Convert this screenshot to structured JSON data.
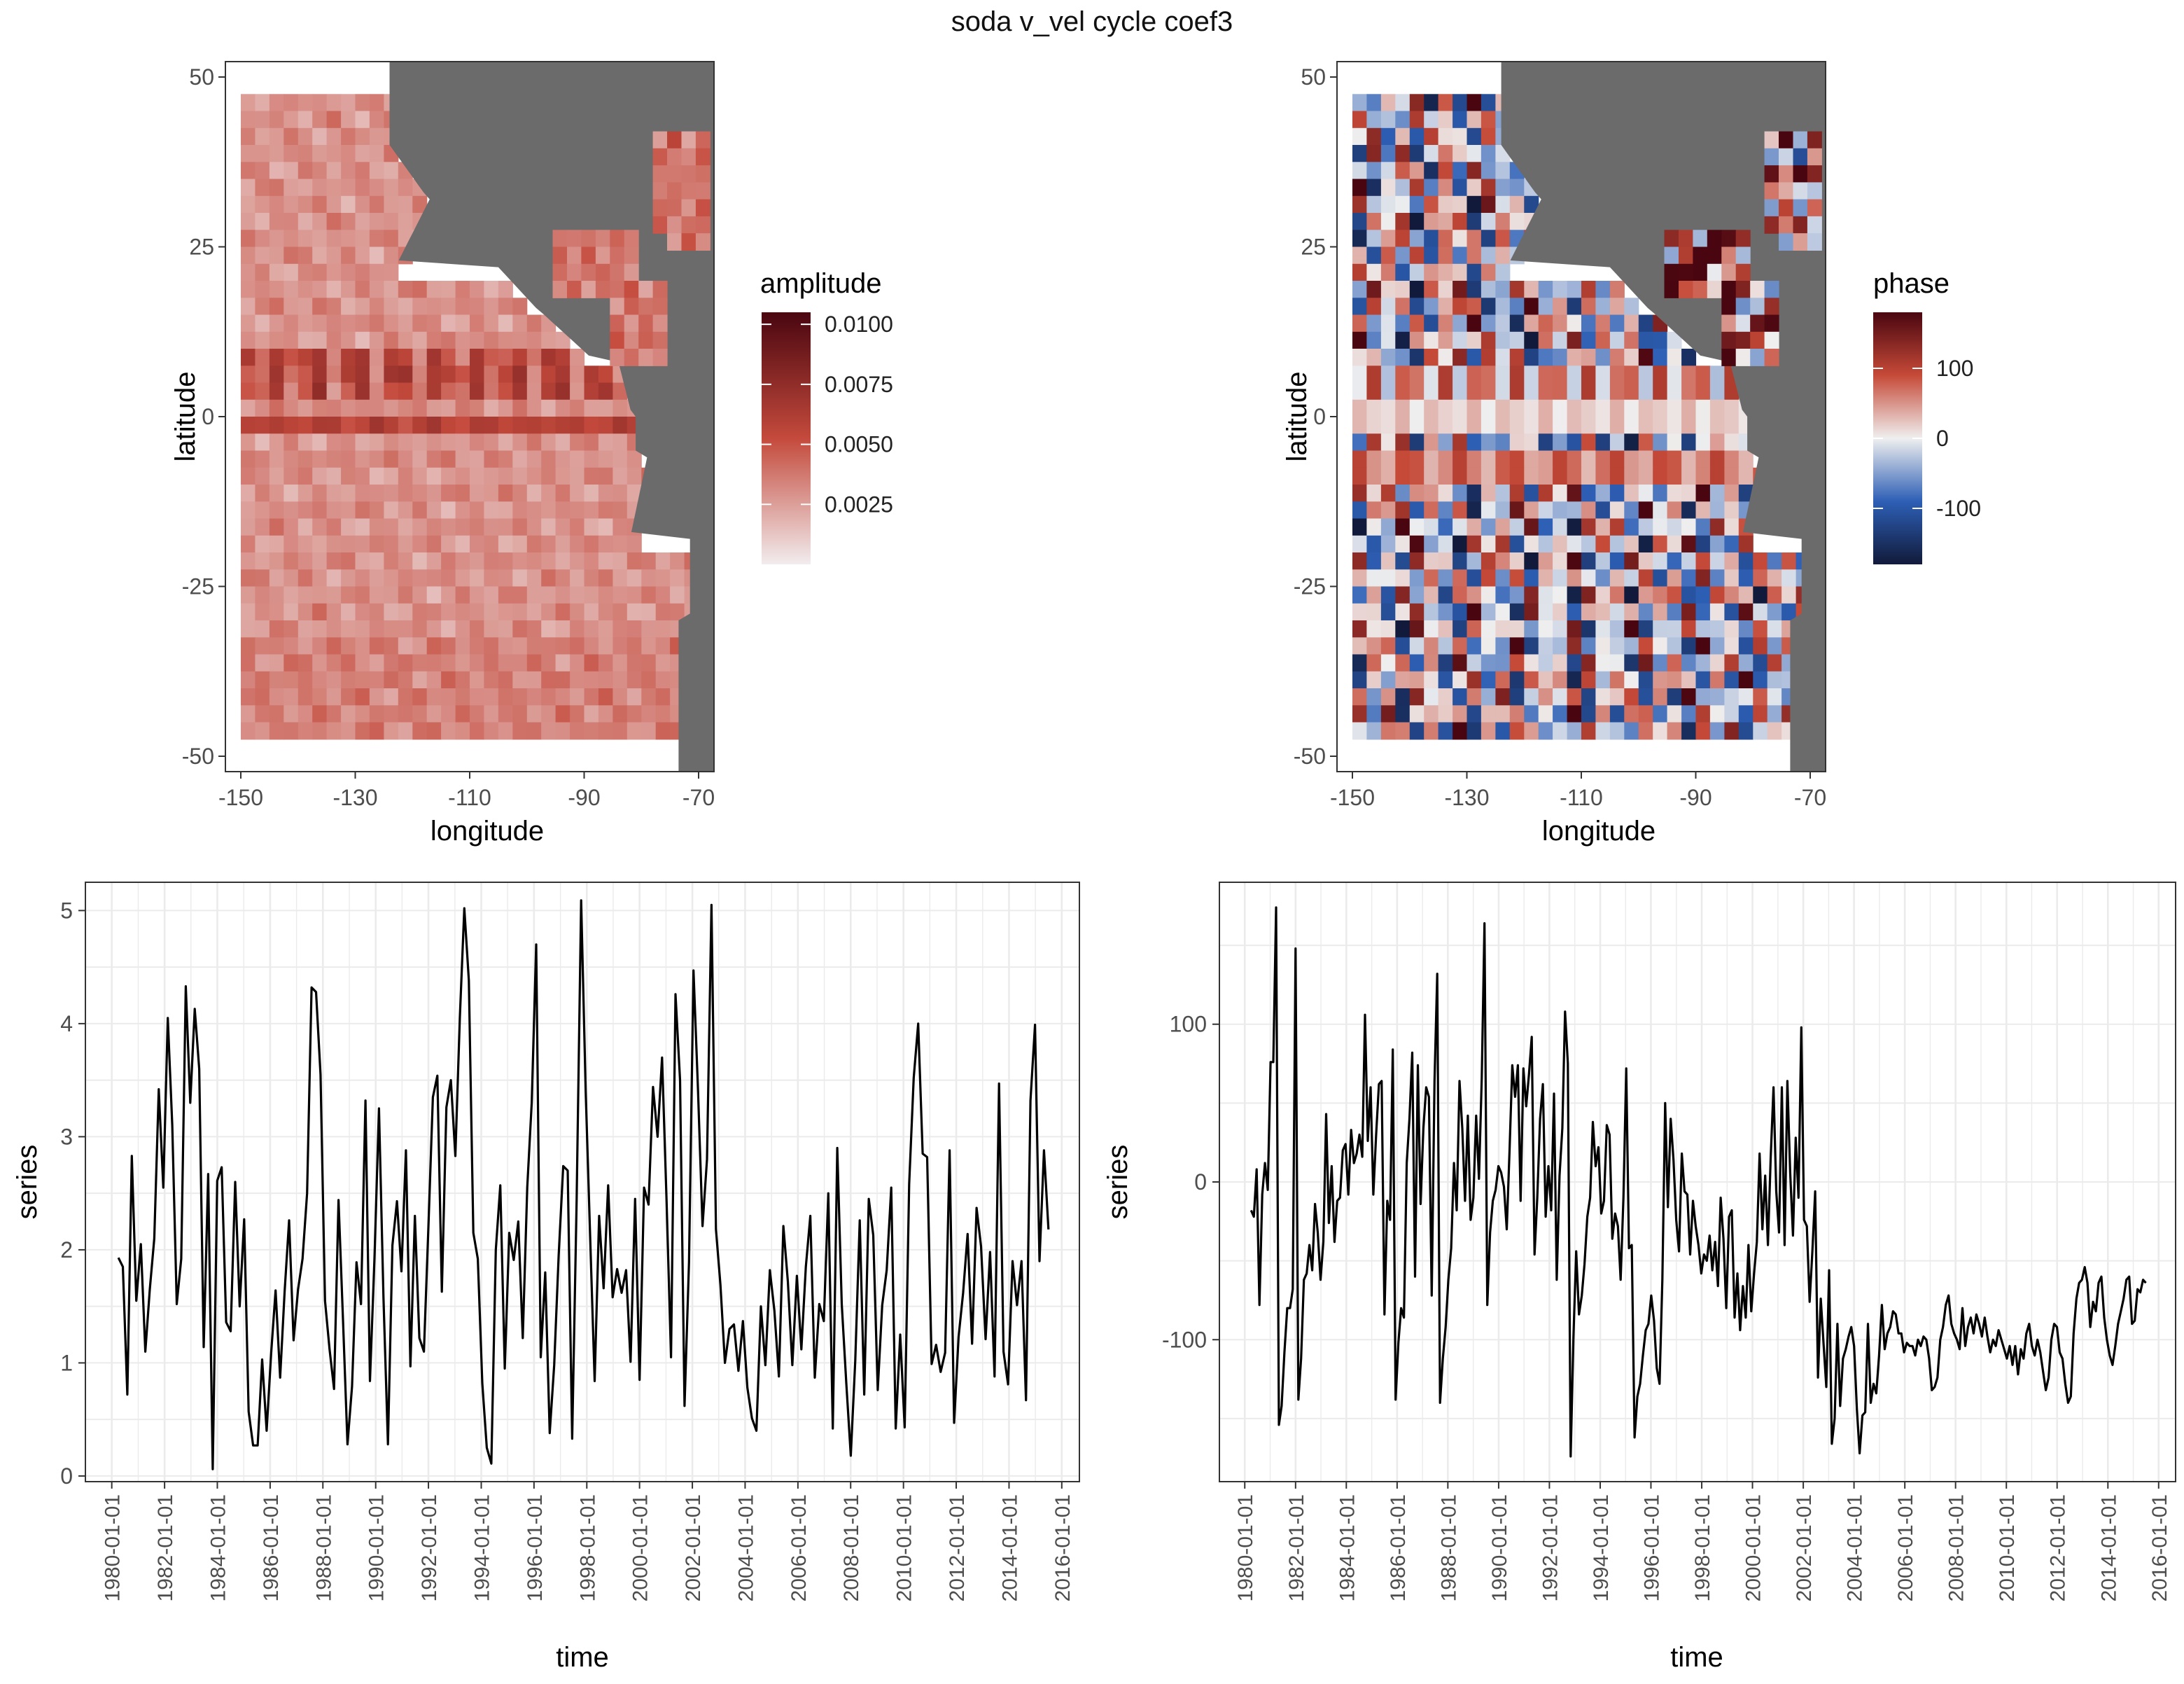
{
  "figure": {
    "title": "soda v_vel cycle coef3"
  },
  "colors": {
    "land": "#6b6b6b",
    "axis_text": "#4d4d4d",
    "grid": "#ebebeb",
    "amplitude_low": "#f2ecee",
    "amplitude_mid": "#c44a3c",
    "amplitude_high": "#4a0610",
    "phase_low": "#111a3a",
    "phase_mid": "#efefef",
    "phase_high": "#4a0610",
    "line": "#000000"
  },
  "chart_data": [
    {
      "type": "heatmap",
      "title": "",
      "xlabel": "longitude",
      "ylabel": "latitude",
      "xlim": [
        -150,
        -70
      ],
      "ylim": [
        -50,
        50
      ],
      "xticks": [
        -150,
        -130,
        -110,
        -90,
        -70
      ],
      "yticks": [
        -50,
        -25,
        0,
        25,
        50
      ],
      "legend": {
        "title": "amplitude",
        "placement": "right",
        "range": [
          0,
          0.0105
        ],
        "ticks": [
          "0.0025",
          "0.0050",
          "0.0075",
          "0.0100"
        ]
      }
    },
    {
      "type": "heatmap",
      "title": "",
      "xlabel": "longitude",
      "ylabel": "latitude",
      "xlim": [
        -150,
        -70
      ],
      "ylim": [
        -50,
        50
      ],
      "xticks": [
        -150,
        -130,
        -110,
        -90,
        -70
      ],
      "yticks": [
        -50,
        -25,
        0,
        25,
        50
      ],
      "legend": {
        "title": "phase",
        "placement": "right",
        "range": [
          -180,
          180
        ],
        "ticks": [
          "-100",
          "0",
          "100"
        ]
      }
    },
    {
      "type": "line",
      "xlabel": "time",
      "ylabel": "series",
      "ylim": [
        -0.05,
        5.25
      ],
      "yticks": [
        "0",
        "1",
        "2",
        "3",
        "4",
        "5"
      ],
      "xticks": [
        "1980-01-01",
        "1982-01-01",
        "1984-01-01",
        "1986-01-01",
        "1988-01-01",
        "1990-01-01",
        "1992-01-01",
        "1994-01-01",
        "1996-01-01",
        "1998-01-01",
        "2000-01-01",
        "2002-01-01",
        "2004-01-01",
        "2006-01-01",
        "2008-01-01",
        "2010-01-01",
        "2012-01-01",
        "2014-01-01",
        "2016-01-01"
      ],
      "x_start": "1980-04-01",
      "x_end": "2015-07-01",
      "values": [
        1.93,
        1.85,
        0.72,
        2.83,
        1.55,
        2.05,
        1.1,
        1.65,
        2.1,
        3.42,
        2.55,
        4.05,
        3.1,
        1.52,
        1.92,
        4.33,
        3.3,
        4.13,
        3.6,
        1.14,
        2.67,
        0.06,
        2.61,
        2.73,
        1.36,
        1.28,
        2.6,
        1.5,
        2.27,
        0.57,
        0.27,
        0.27,
        1.03,
        0.4,
        1.08,
        1.64,
        0.87,
        1.63,
        2.26,
        1.2,
        1.65,
        1.92,
        2.5,
        4.32,
        4.28,
        3.55,
        1.55,
        1.12,
        0.77,
        2.44,
        1.38,
        0.28,
        0.79,
        1.89,
        1.52,
        3.32,
        0.84,
        1.93,
        3.25,
        1.58,
        0.28,
        2.04,
        2.43,
        1.81,
        2.88,
        0.97,
        2.3,
        1.22,
        1.1,
        2.2,
        3.35,
        3.54,
        1.63,
        3.26,
        3.5,
        2.83,
        4.05,
        5.02,
        4.38,
        2.15,
        1.92,
        0.82,
        0.25,
        0.11,
        2.0,
        2.57,
        0.95,
        2.15,
        1.91,
        2.25,
        1.22,
        2.55,
        3.3,
        4.7,
        1.05,
        1.8,
        0.38,
        0.98,
        1.95,
        2.74,
        2.7,
        0.33,
        2.45,
        5.09,
        3.4,
        2.11,
        0.84,
        2.3,
        1.66,
        2.57,
        1.58,
        1.83,
        1.62,
        1.82,
        1.01,
        2.45,
        0.85,
        2.55,
        2.4,
        3.44,
        3.0,
        3.7,
        2.44,
        1.05,
        4.26,
        3.5,
        0.62,
        1.89,
        4.47,
        3.42,
        2.21,
        2.8,
        5.05,
        2.18,
        1.69,
        1.0,
        1.3,
        1.34,
        0.93,
        1.37,
        0.78,
        0.51,
        0.4,
        1.5,
        0.98,
        1.82,
        1.46,
        0.88,
        2.21,
        1.72,
        0.98,
        1.77,
        1.12,
        1.85,
        2.3,
        0.87,
        1.52,
        1.37,
        2.5,
        0.42,
        2.9,
        1.52,
        0.82,
        0.18,
        1.02,
        2.26,
        0.72,
        2.45,
        2.13,
        0.76,
        1.51,
        1.82,
        2.55,
        0.42,
        1.25,
        0.43,
        2.58,
        3.52,
        4.0,
        2.85,
        2.82,
        0.99,
        1.16,
        0.92,
        1.09,
        2.88,
        0.47,
        1.23,
        1.62,
        2.14,
        1.17,
        2.37,
        2.03,
        1.21,
        1.98,
        0.88,
        3.47,
        1.1,
        0.81,
        1.9,
        1.51,
        1.9,
        0.67,
        3.32,
        3.99,
        1.9,
        2.88,
        2.18
      ]
    },
    {
      "type": "line",
      "xlabel": "time",
      "ylabel": "series",
      "ylim": [
        -190,
        190
      ],
      "yticks": [
        "-100",
        "0",
        "100"
      ],
      "xticks": [
        "1980-01-01",
        "1982-01-01",
        "1984-01-01",
        "1986-01-01",
        "1988-01-01",
        "1990-01-01",
        "1992-01-01",
        "1994-01-01",
        "1996-01-01",
        "1998-01-01",
        "2000-01-01",
        "2002-01-01",
        "2004-01-01",
        "2006-01-01",
        "2008-01-01",
        "2010-01-01",
        "2012-01-01",
        "2014-01-01",
        "2016-01-01"
      ],
      "x_start": "1980-04-01",
      "x_end": "2015-07-01",
      "values": [
        -18,
        -22,
        8,
        -78,
        -8,
        12,
        -5,
        76,
        76,
        174,
        -154,
        -142,
        -108,
        -80,
        -80,
        -68,
        148,
        -138,
        -112,
        -62,
        -58,
        -40,
        -56,
        -14,
        -32,
        -62,
        -38,
        43,
        -26,
        10,
        -38,
        -12,
        -10,
        20,
        24,
        -8,
        33,
        12,
        18,
        30,
        16,
        106,
        26,
        60,
        -8,
        30,
        62,
        64,
        -84,
        -12,
        -24,
        84,
        -138,
        -102,
        -80,
        -86,
        12,
        40,
        82,
        -60,
        74,
        -14,
        34,
        60,
        54,
        -72,
        64,
        132,
        -140,
        -112,
        -92,
        -62,
        -42,
        12,
        -18,
        64,
        34,
        -12,
        42,
        -24,
        -10,
        42,
        2,
        66,
        164,
        -78,
        -32,
        -12,
        -5,
        10,
        6,
        -3,
        -30,
        20,
        74,
        54,
        74,
        -12,
        72,
        48,
        68,
        92,
        -46,
        -10,
        40,
        62,
        -22,
        10,
        -18,
        56,
        -62,
        4,
        34,
        108,
        75,
        -174,
        -98,
        -44,
        -84,
        -72,
        -52,
        -22,
        -10,
        38,
        10,
        22,
        -20,
        -12,
        36,
        30,
        -36,
        -20,
        -28,
        -62,
        -10,
        72,
        -42,
        -40,
        -162,
        -136,
        -128,
        -110,
        -94,
        -90,
        -72,
        -88,
        -118,
        -128,
        -62,
        50,
        -16,
        40,
        14,
        -24,
        -44,
        18,
        -6,
        -8,
        -46,
        -12,
        -28,
        -40,
        -58,
        -46,
        -50,
        -34,
        -56,
        -38,
        -66,
        -10,
        -36,
        -80,
        -22,
        -18,
        -86,
        -58,
        -94,
        -66,
        -86,
        -40,
        -82,
        -58,
        -38,
        18,
        -30,
        4,
        -40,
        16,
        60,
        -6,
        -32,
        60,
        -40,
        64,
        6,
        -34,
        28,
        -10,
        98,
        -24,
        -28,
        -76,
        -44,
        -6,
        -124,
        -74,
        -102,
        -130,
        -56,
        -166,
        -150,
        -90,
        -142,
        -112,
        -106,
        -98,
        -92,
        -104,
        -144,
        -172,
        -148,
        -146,
        -90,
        -140,
        -128,
        -134,
        -110,
        -78,
        -106,
        -96,
        -92,
        -82,
        -84,
        -96,
        -96,
        -108,
        -102,
        -104,
        -104,
        -110,
        -100,
        -104,
        -98,
        -100,
        -112,
        -132,
        -130,
        -124,
        -100,
        -92,
        -78,
        -72,
        -90,
        -96,
        -100,
        -106,
        -80,
        -104,
        -92,
        -86,
        -96,
        -84,
        -90,
        -98,
        -86,
        -98,
        -108,
        -100,
        -104,
        -94,
        -100,
        -106,
        -112,
        -104,
        -116,
        -104,
        -122,
        -106,
        -112,
        -96,
        -90,
        -104,
        -110,
        -100,
        -108,
        -120,
        -132,
        -124,
        -100,
        -90,
        -92,
        -108,
        -112,
        -128,
        -140,
        -136,
        -96,
        -74,
        -64,
        -62,
        -54,
        -64,
        -92,
        -76,
        -82,
        -64,
        -60,
        -86,
        -100,
        -110,
        -116,
        -104,
        -90,
        -82,
        -74,
        -62,
        -60,
        -90,
        -88,
        -68,
        -70,
        -62,
        -64
      ]
    }
  ]
}
